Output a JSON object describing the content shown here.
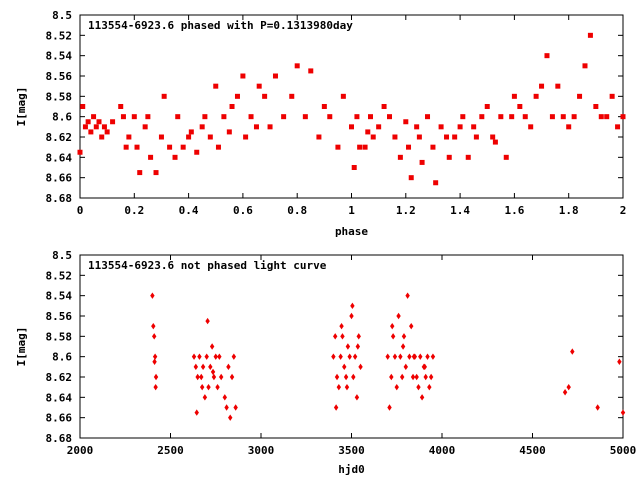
{
  "colors": {
    "points": "#ee0000",
    "frame": "#000000",
    "background": "#ffffff"
  },
  "chart_data": [
    {
      "type": "scatter",
      "title": "113554-6923.6 phased with P=0.1313980day",
      "xlabel": "phase",
      "ylabel": "I[mag]",
      "xlim": [
        0,
        2
      ],
      "ylim": [
        8.68,
        8.5
      ],
      "y_inverted": true,
      "grid": false,
      "marker": "filled-square",
      "xticks": [
        "0",
        "0.2",
        "0.4",
        "0.6",
        "0.8",
        "1",
        "1.2",
        "1.4",
        "1.6",
        "1.8",
        "2"
      ],
      "yticks": [
        "8.5",
        "8.52",
        "8.54",
        "8.56",
        "8.58",
        "8.6",
        "8.62",
        "8.64",
        "8.66",
        "8.68"
      ],
      "x": [
        0.0,
        0.01,
        0.02,
        0.03,
        0.04,
        0.05,
        0.06,
        0.07,
        0.08,
        0.09,
        0.1,
        0.12,
        0.15,
        0.16,
        0.17,
        0.18,
        0.2,
        0.21,
        0.22,
        0.24,
        0.25,
        0.26,
        0.28,
        0.3,
        0.31,
        0.33,
        0.35,
        0.36,
        0.38,
        0.4,
        0.41,
        0.43,
        0.45,
        0.46,
        0.48,
        0.5,
        0.51,
        0.53,
        0.55,
        0.56,
        0.58,
        0.6,
        0.61,
        0.63,
        0.65,
        0.66,
        0.68,
        0.7,
        0.72,
        0.75,
        0.78,
        0.8,
        0.83,
        0.85,
        0.88,
        0.9,
        0.92,
        0.95,
        0.97,
        1.0,
        1.01,
        1.02,
        1.03,
        1.05,
        1.06,
        1.07,
        1.08,
        1.1,
        1.12,
        1.14,
        1.16,
        1.18,
        1.2,
        1.21,
        1.22,
        1.24,
        1.25,
        1.26,
        1.28,
        1.3,
        1.31,
        1.33,
        1.35,
        1.36,
        1.38,
        1.4,
        1.41,
        1.43,
        1.45,
        1.46,
        1.48,
        1.5,
        1.52,
        1.53,
        1.55,
        1.57,
        1.59,
        1.6,
        1.62,
        1.64,
        1.66,
        1.68,
        1.7,
        1.72,
        1.74,
        1.76,
        1.78,
        1.8,
        1.82,
        1.84,
        1.86,
        1.88,
        1.9,
        1.92,
        1.94,
        1.96,
        1.98,
        2.0
      ],
      "y": [
        8.635,
        8.59,
        8.61,
        8.605,
        8.615,
        8.6,
        8.61,
        8.605,
        8.62,
        8.61,
        8.615,
        8.605,
        8.59,
        8.6,
        8.63,
        8.62,
        8.6,
        8.63,
        8.655,
        8.61,
        8.6,
        8.64,
        8.655,
        8.62,
        8.58,
        8.63,
        8.64,
        8.6,
        8.63,
        8.62,
        8.615,
        8.635,
        8.61,
        8.6,
        8.62,
        8.57,
        8.63,
        8.6,
        8.615,
        8.59,
        8.58,
        8.56,
        8.62,
        8.6,
        8.61,
        8.57,
        8.58,
        8.61,
        8.56,
        8.6,
        8.58,
        8.55,
        8.6,
        8.555,
        8.62,
        8.59,
        8.6,
        8.63,
        8.58,
        8.61,
        8.65,
        8.6,
        8.63,
        8.63,
        8.615,
        8.6,
        8.62,
        8.61,
        8.59,
        8.6,
        8.62,
        8.64,
        8.605,
        8.63,
        8.66,
        8.61,
        8.62,
        8.645,
        8.6,
        8.63,
        8.665,
        8.61,
        8.62,
        8.64,
        8.62,
        8.61,
        8.6,
        8.64,
        8.61,
        8.62,
        8.6,
        8.59,
        8.62,
        8.625,
        8.6,
        8.64,
        8.6,
        8.58,
        8.59,
        8.6,
        8.61,
        8.58,
        8.57,
        8.54,
        8.6,
        8.57,
        8.6,
        8.61,
        8.6,
        8.58,
        8.55,
        8.52,
        8.59,
        8.6,
        8.6,
        8.58,
        8.61,
        8.6
      ]
    },
    {
      "type": "scatter",
      "title": "113554-6923.6 not phased light curve",
      "xlabel": "hjd0",
      "ylabel": "I[mag]",
      "xlim": [
        2000,
        5000
      ],
      "ylim": [
        8.68,
        8.5
      ],
      "y_inverted": true,
      "grid": false,
      "marker": "filled-diamond",
      "xticks": [
        "2000",
        "2500",
        "3000",
        "3500",
        "4000",
        "4500",
        "5000"
      ],
      "yticks": [
        "8.5",
        "8.52",
        "8.54",
        "8.56",
        "8.58",
        "8.6",
        "8.62",
        "8.64",
        "8.66",
        "8.68"
      ],
      "x": [
        2400,
        2410,
        2415,
        2420,
        2405,
        2412,
        2418,
        2630,
        2640,
        2650,
        2660,
        2670,
        2680,
        2690,
        2700,
        2710,
        2720,
        2730,
        2740,
        2750,
        2760,
        2780,
        2800,
        2810,
        2820,
        2830,
        2840,
        2850,
        2860,
        2645,
        2675,
        2705,
        2735,
        2770,
        3400,
        3410,
        3420,
        3430,
        3440,
        3450,
        3460,
        3470,
        3480,
        3490,
        3500,
        3510,
        3520,
        3530,
        3540,
        3550,
        3415,
        3445,
        3475,
        3505,
        3535,
        3700,
        3710,
        3720,
        3730,
        3740,
        3750,
        3760,
        3770,
        3780,
        3790,
        3800,
        3810,
        3820,
        3830,
        3840,
        3850,
        3860,
        3870,
        3880,
        3890,
        3900,
        3910,
        3920,
        3930,
        3940,
        3950,
        3725,
        3785,
        3845,
        3905,
        4680,
        4700,
        4720,
        4860,
        4980,
        5000
      ],
      "y": [
        8.54,
        8.58,
        8.6,
        8.62,
        8.57,
        8.605,
        8.63,
        8.6,
        8.61,
        8.62,
        8.6,
        8.62,
        8.61,
        8.64,
        8.6,
        8.63,
        8.61,
        8.59,
        8.62,
        8.6,
        8.63,
        8.62,
        8.64,
        8.65,
        8.61,
        8.66,
        8.62,
        8.6,
        8.65,
        8.655,
        8.63,
        8.565,
        8.615,
        8.6,
        8.6,
        8.58,
        8.62,
        8.63,
        8.6,
        8.58,
        8.61,
        8.62,
        8.59,
        8.6,
        8.56,
        8.62,
        8.6,
        8.64,
        8.58,
        8.61,
        8.65,
        8.57,
        8.63,
        8.55,
        8.59,
        8.6,
        8.65,
        8.62,
        8.58,
        8.6,
        8.63,
        8.56,
        8.6,
        8.62,
        8.58,
        8.61,
        8.54,
        8.6,
        8.57,
        8.62,
        8.6,
        8.62,
        8.63,
        8.6,
        8.64,
        8.61,
        8.62,
        8.6,
        8.63,
        8.62,
        8.6,
        8.57,
        8.59,
        8.6,
        8.61,
        8.635,
        8.63,
        8.595,
        8.65,
        8.605,
        8.655
      ]
    }
  ]
}
